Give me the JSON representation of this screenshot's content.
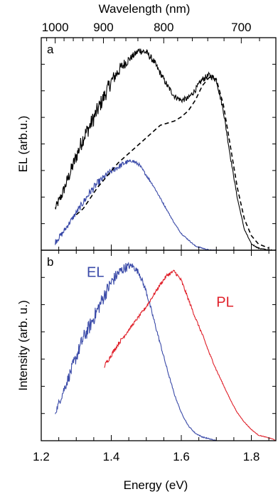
{
  "chart_data": {
    "type": "line",
    "x_top_label": "Wavelength (nm)",
    "x_top_ticks": [
      1000,
      900,
      800,
      700
    ],
    "xlabel": "Energy (eV)",
    "x_ticks": [
      1.2,
      1.4,
      1.6,
      1.8
    ],
    "xlim": [
      1.2,
      1.87
    ],
    "panels": [
      {
        "label": "a",
        "ylabel": "EL (arb.u.)",
        "ylim": [
          0,
          1.0
        ],
        "series": [
          {
            "color": "#000000",
            "style": "solid",
            "noisy": true,
            "x": [
              1.24,
              1.26,
              1.28,
              1.3,
              1.32,
              1.34,
              1.36,
              1.38,
              1.4,
              1.42,
              1.44,
              1.46,
              1.48,
              1.5,
              1.52,
              1.54,
              1.56,
              1.58,
              1.6,
              1.62,
              1.64,
              1.66,
              1.68,
              1.7,
              1.72,
              1.74,
              1.76,
              1.78,
              1.8,
              1.82,
              1.85,
              1.87
            ],
            "y": [
              0.2,
              0.27,
              0.36,
              0.45,
              0.54,
              0.6,
              0.67,
              0.74,
              0.81,
              0.86,
              0.9,
              0.93,
              0.96,
              0.95,
              0.91,
              0.85,
              0.79,
              0.74,
              0.72,
              0.73,
              0.77,
              0.82,
              0.84,
              0.82,
              0.67,
              0.45,
              0.25,
              0.1,
              0.03,
              0.01,
              0.0,
              0.0
            ]
          },
          {
            "color": "#3a4aa8",
            "style": "solid",
            "noisy": true,
            "x": [
              1.24,
              1.26,
              1.28,
              1.3,
              1.32,
              1.34,
              1.36,
              1.38,
              1.4,
              1.42,
              1.44,
              1.46,
              1.48,
              1.5,
              1.52,
              1.54,
              1.56,
              1.58,
              1.6,
              1.62,
              1.64,
              1.66,
              1.68,
              1.7
            ],
            "y": [
              0.04,
              0.08,
              0.13,
              0.18,
              0.23,
              0.28,
              0.32,
              0.35,
              0.38,
              0.4,
              0.42,
              0.43,
              0.41,
              0.36,
              0.31,
              0.25,
              0.19,
              0.13,
              0.08,
              0.05,
              0.02,
              0.01,
              0.0,
              0.0
            ]
          },
          {
            "color": "#000000",
            "style": "dashed",
            "noisy": false,
            "x": [
              1.3,
              1.32,
              1.34,
              1.36,
              1.38,
              1.4,
              1.42,
              1.44,
              1.46,
              1.48,
              1.5,
              1.52,
              1.54,
              1.56,
              1.58,
              1.6,
              1.62,
              1.64,
              1.66,
              1.68,
              1.7,
              1.72,
              1.74,
              1.76,
              1.78,
              1.8,
              1.82,
              1.85
            ],
            "y": [
              0.17,
              0.2,
              0.25,
              0.3,
              0.34,
              0.38,
              0.42,
              0.45,
              0.48,
              0.51,
              0.54,
              0.57,
              0.6,
              0.61,
              0.62,
              0.64,
              0.67,
              0.72,
              0.79,
              0.83,
              0.82,
              0.7,
              0.5,
              0.3,
              0.15,
              0.07,
              0.03,
              0.01
            ]
          }
        ]
      },
      {
        "label": "b",
        "ylabel": "Intensity (arb. u.)",
        "ylim": [
          0,
          1.0
        ],
        "annotations": [
          {
            "text": "EL",
            "color": "#3a4aa8",
            "x": 1.33,
            "y": 0.88
          },
          {
            "text": "PL",
            "color": "#e0202a",
            "x": 1.7,
            "y": 0.72
          }
        ],
        "series": [
          {
            "color": "#3a4aa8",
            "style": "solid",
            "noisy": true,
            "x": [
              1.24,
              1.26,
              1.28,
              1.3,
              1.32,
              1.34,
              1.36,
              1.38,
              1.4,
              1.42,
              1.44,
              1.46,
              1.48,
              1.5,
              1.52,
              1.54,
              1.56,
              1.58,
              1.6,
              1.62,
              1.64,
              1.66,
              1.68,
              1.7
            ],
            "y": [
              0.15,
              0.25,
              0.35,
              0.45,
              0.55,
              0.62,
              0.7,
              0.78,
              0.85,
              0.9,
              0.93,
              0.94,
              0.9,
              0.8,
              0.66,
              0.52,
              0.38,
              0.25,
              0.15,
              0.08,
              0.04,
              0.02,
              0.01,
              0.0
            ]
          },
          {
            "color": "#e0202a",
            "style": "solid",
            "noisy": true,
            "x": [
              1.38,
              1.4,
              1.42,
              1.44,
              1.46,
              1.48,
              1.5,
              1.52,
              1.54,
              1.56,
              1.58,
              1.6,
              1.62,
              1.64,
              1.66,
              1.68,
              1.7,
              1.72,
              1.74,
              1.76,
              1.78,
              1.8,
              1.82,
              1.84,
              1.86,
              1.87
            ],
            "y": [
              0.4,
              0.46,
              0.52,
              0.57,
              0.62,
              0.67,
              0.72,
              0.78,
              0.84,
              0.89,
              0.91,
              0.86,
              0.76,
              0.66,
              0.57,
              0.47,
              0.38,
              0.3,
              0.22,
              0.15,
              0.1,
              0.06,
              0.03,
              0.02,
              0.01,
              0.0
            ]
          }
        ]
      }
    ]
  }
}
